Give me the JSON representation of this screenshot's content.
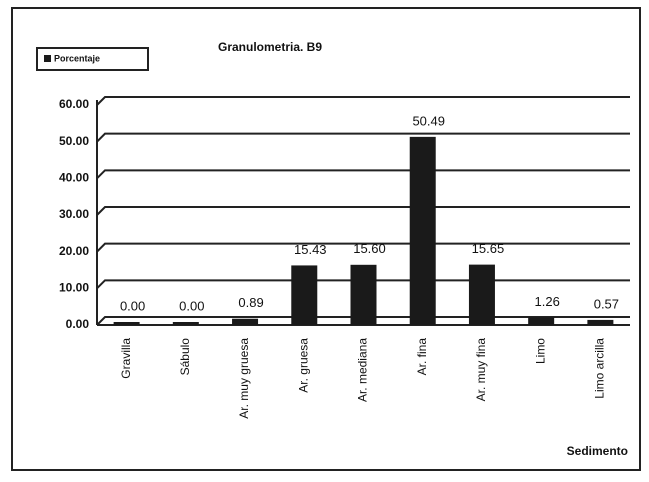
{
  "chart_data": {
    "type": "bar",
    "title": "Granulometria. B9",
    "x_label": "Sedimento",
    "categories": [
      "Gravilla",
      "Sábulo",
      "Ar. muy gruesa",
      "Ar. gruesa",
      "Ar. mediana",
      "Ar. fina",
      "Ar. muy fina",
      "Limo",
      "Limo arcilla"
    ],
    "series": [
      {
        "name": "Porcentaje",
        "color": "#1a1a1a",
        "values": [
          0,
          0,
          0.89,
          15.43,
          15.6,
          50.49,
          15.65,
          1.26,
          0.57
        ],
        "value_labels": [
          "0.00",
          "0.00",
          "0.89",
          "15.43",
          "15.60",
          "50.49",
          "15.65",
          "1.26",
          "0.57"
        ]
      }
    ],
    "ylim": [
      0,
      60
    ],
    "yticks": [
      {
        "value": 0,
        "label": "0.00"
      },
      {
        "value": 10,
        "label": "10.00"
      },
      {
        "value": 20,
        "label": "20.00"
      },
      {
        "value": 30,
        "label": "30.00"
      },
      {
        "value": 40,
        "label": "40.00"
      },
      {
        "value": 50,
        "label": "50.00"
      },
      {
        "value": 60,
        "label": "60.00"
      }
    ],
    "grid": true,
    "legend": "top-left"
  }
}
